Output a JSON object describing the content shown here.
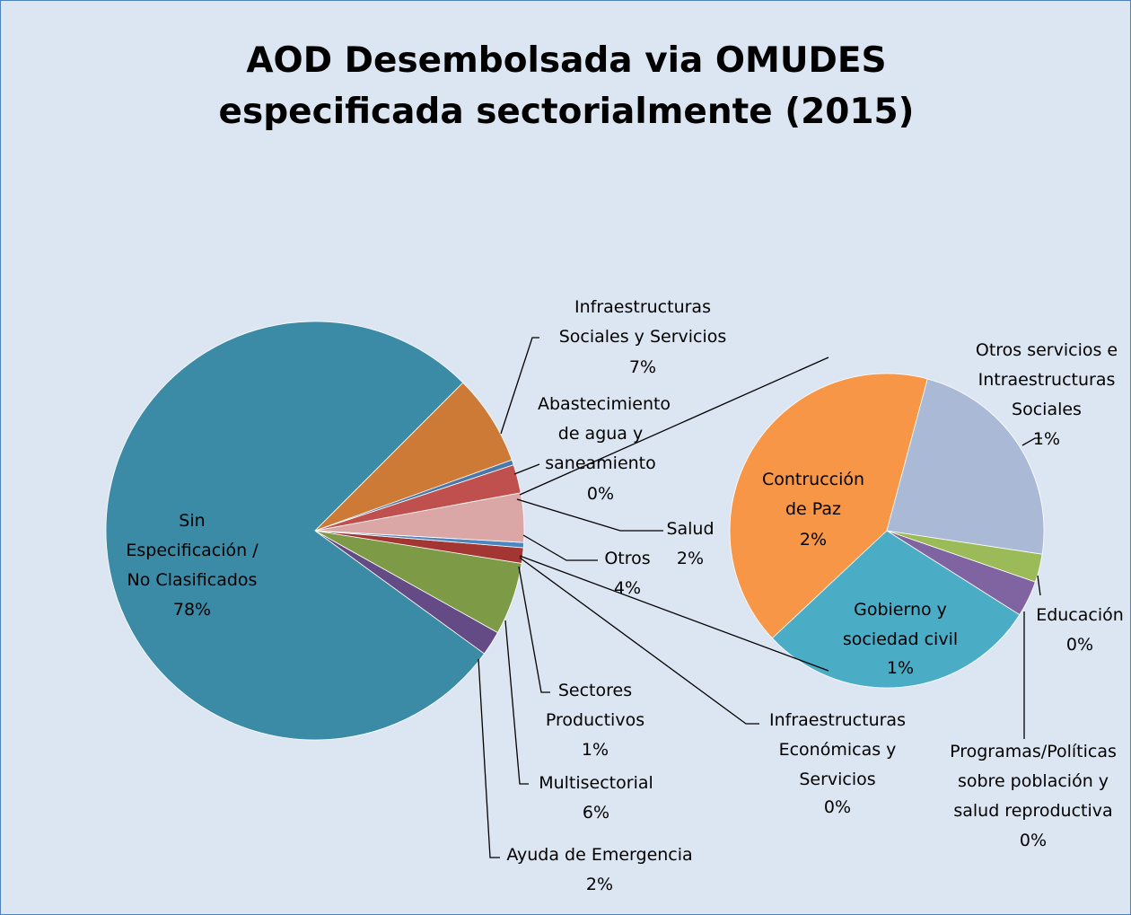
{
  "chart_data": [
    {
      "type": "pie",
      "title": "AOD Desembolsada via OMUDES especificada sectorialmente (2015)",
      "categories": [
        "Infraestructuras Sociales y Servicios",
        "Abastecimiento de agua y saneamiento",
        "Salud",
        "Otros",
        "Infraestructuras Económicas y Servicios",
        "Sectores Productivos",
        "Multisectorial",
        "Ayuda de Emergencia",
        "Sin Especificación / No Clasificados"
      ],
      "values": [
        7.0,
        0.4,
        2.2,
        3.8,
        0.4,
        1.2,
        5.6,
        1.9,
        77.5
      ],
      "value_labels": [
        "7%",
        "0%",
        "2%",
        "4%",
        "0%",
        "1%",
        "6%",
        "2%",
        "78%"
      ],
      "colors": [
        "#cc7a35",
        "#4a78ab",
        "#c0504d",
        "#dba7a6",
        "#4a86c0",
        "#a33532",
        "#7d9a46",
        "#654b85",
        "#3b8ba6"
      ]
    },
    {
      "type": "pie",
      "categories": [
        "Otros servicios e Intraestructuras Sociales",
        "Educación",
        "Programas/Políticas sobre población y salud reproductiva",
        "Gobierno y sociedad civil",
        "Contrucción de Paz"
      ],
      "values": [
        0.88,
        0.11,
        0.14,
        1.1,
        1.56
      ],
      "value_labels": [
        "1%",
        "0%",
        "0%",
        "1%",
        "2%"
      ],
      "colors": [
        "#aab9d6",
        "#9bbb59",
        "#8064a2",
        "#4bacc6",
        "#f79646"
      ]
    }
  ]
}
